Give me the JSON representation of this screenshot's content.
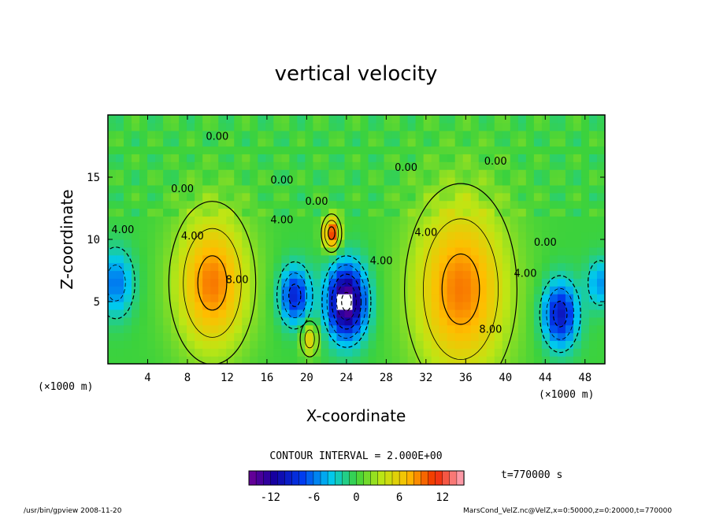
{
  "chart_data": {
    "type": "heatmap",
    "title": "vertical velocity",
    "xlabel": "X-coordinate",
    "ylabel": "Z-coordinate",
    "x_unit_left": "(×1000 m)",
    "x_unit_right": "(×1000 m)",
    "xlim": [
      0,
      50
    ],
    "ylim": [
      0,
      20
    ],
    "x_ticks": [
      4,
      8,
      12,
      16,
      20,
      24,
      28,
      32,
      36,
      40,
      44,
      48
    ],
    "y_ticks": [
      5,
      10,
      15
    ],
    "contour_interval_text": "CONTOUR INTERVAL = 2.000E+00",
    "time_text": "t=770000 s",
    "colorbar": {
      "min": -15,
      "max": 15,
      "ticks": [
        -12,
        -6,
        0,
        6,
        12
      ]
    },
    "contour_labels": [
      {
        "text": "4.00",
        "x": 1.5,
        "z": 10.5
      },
      {
        "text": "0.00",
        "x": 11,
        "z": 18
      },
      {
        "text": "0.00",
        "x": 7.5,
        "z": 13.8
      },
      {
        "text": "4.00",
        "x": 8.5,
        "z": 10
      },
      {
        "text": "8.00",
        "x": 13,
        "z": 6.5
      },
      {
        "text": "0.00",
        "x": 17.5,
        "z": 14.5
      },
      {
        "text": "4.00",
        "x": 17.5,
        "z": 11.3
      },
      {
        "text": "0.00",
        "x": 21,
        "z": 12.8
      },
      {
        "text": "4.00",
        "x": 27.5,
        "z": 8
      },
      {
        "text": "0.00",
        "x": 30,
        "z": 15.5
      },
      {
        "text": "4.00",
        "x": 32,
        "z": 10.3
      },
      {
        "text": "0.00",
        "x": 39,
        "z": 16
      },
      {
        "text": "8.00",
        "x": 38.5,
        "z": 2.5
      },
      {
        "text": "4.00",
        "x": 42,
        "z": 7
      },
      {
        "text": "0.00",
        "x": 44,
        "z": 9.5
      }
    ],
    "features": [
      {
        "x": 10.5,
        "z": 6.5,
        "w": 8.5,
        "peak": 9
      },
      {
        "x": 35.5,
        "z": 6.0,
        "w": 11,
        "peak": 9
      },
      {
        "x": 24.0,
        "z": 5.0,
        "w": 4.5,
        "peak": -15
      },
      {
        "x": 18.8,
        "z": 5.5,
        "w": 3.5,
        "peak": -9
      },
      {
        "x": 45.5,
        "z": 4.0,
        "w": 4.0,
        "peak": -10
      },
      {
        "x": 0.8,
        "z": 6.5,
        "w": 4.0,
        "peak": -6
      },
      {
        "x": 22.5,
        "z": 10.5,
        "w": 2.0,
        "peak": 11
      },
      {
        "x": 20.3,
        "z": 2.0,
        "w": 2.0,
        "peak": 6
      },
      {
        "x": 49.5,
        "z": 6.5,
        "w": 3.0,
        "peak": -5
      }
    ]
  },
  "footer": {
    "left": "/usr/bin/gpview   2008-11-20",
    "right": "MarsCond_VelZ.nc@VelZ,x=0:50000,z=0:20000,t=770000"
  }
}
